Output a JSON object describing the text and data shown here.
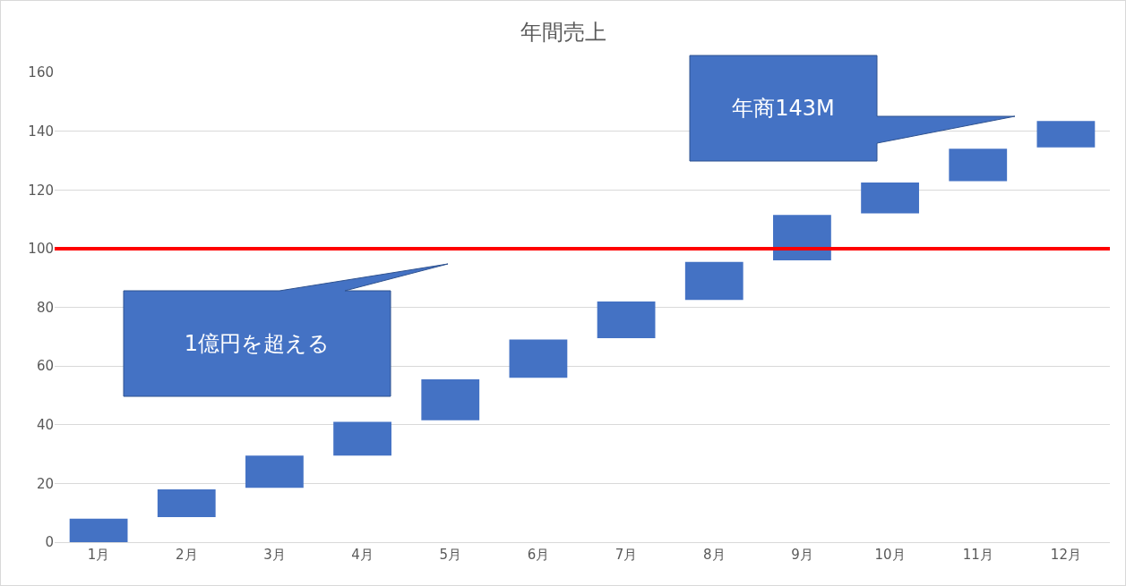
{
  "chart_data": {
    "type": "bar",
    "title": "年間売上",
    "categories": [
      "1月",
      "2月",
      "3月",
      "4月",
      "5月",
      "6月",
      "7月",
      "8月",
      "9月",
      "10月",
      "11月",
      "12月"
    ],
    "values": [
      8,
      9.5,
      11,
      11.5,
      14,
      13,
      12.5,
      13,
      15.5,
      10.5,
      11,
      9
    ],
    "base": [
      0,
      8.5,
      18.5,
      29.5,
      41.5,
      56,
      69.5,
      82.5,
      96,
      112,
      123,
      134.5
    ],
    "color": "#4472c4",
    "ylim": [
      0,
      160
    ],
    "yticks": [
      0,
      20,
      40,
      60,
      80,
      100,
      120,
      140,
      160
    ],
    "grid": "y",
    "ref_lines": [
      {
        "axis": "y",
        "value": 100,
        "color": "#ff0000",
        "line_style": "solid"
      }
    ],
    "annotations": [
      "1億円を超える",
      "年商143M"
    ]
  }
}
